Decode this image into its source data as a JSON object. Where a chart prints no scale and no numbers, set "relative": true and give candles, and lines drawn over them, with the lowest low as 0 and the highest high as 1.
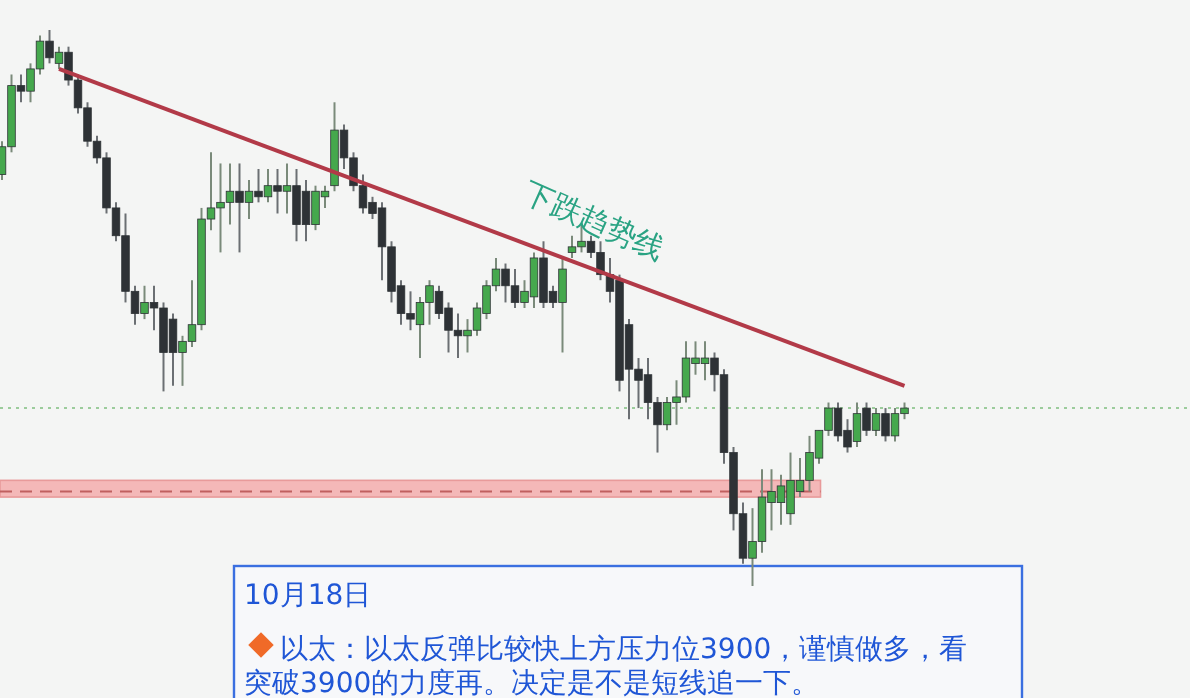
{
  "chart_data": {
    "type": "candlestick",
    "relative": true,
    "categories": [
      null,
      null,
      null,
      null,
      null,
      null,
      null,
      null,
      null,
      null,
      null,
      null,
      null,
      null,
      null,
      null,
      null,
      null,
      null,
      null,
      null,
      null,
      null,
      null,
      null,
      null,
      null,
      null,
      null,
      null,
      null,
      null,
      null,
      null,
      null,
      null,
      null,
      null,
      null,
      null,
      null,
      null,
      null,
      null,
      null,
      null,
      null,
      null,
      null,
      null,
      null,
      null,
      null,
      null,
      null,
      null,
      null,
      null,
      null,
      null,
      null,
      null,
      null,
      null,
      null,
      null,
      null,
      null,
      null,
      null,
      null,
      null,
      null,
      null,
      null,
      null,
      null,
      null,
      null,
      null,
      null,
      null,
      null,
      null,
      null,
      null,
      null,
      null,
      null,
      null,
      null,
      null,
      null,
      null,
      null,
      null
    ],
    "ohlc": [
      [
        0.74,
        0.8,
        0.73,
        0.79
      ],
      [
        0.79,
        0.92,
        0.78,
        0.9
      ],
      [
        0.9,
        0.92,
        0.87,
        0.89
      ],
      [
        0.89,
        0.94,
        0.87,
        0.93
      ],
      [
        0.93,
        0.99,
        0.92,
        0.98
      ],
      [
        0.98,
        1.0,
        0.94,
        0.95
      ],
      [
        0.94,
        0.97,
        0.93,
        0.96
      ],
      [
        0.96,
        0.97,
        0.9,
        0.91
      ],
      [
        0.91,
        0.92,
        0.85,
        0.86
      ],
      [
        0.86,
        0.87,
        0.79,
        0.8
      ],
      [
        0.8,
        0.81,
        0.76,
        0.77
      ],
      [
        0.77,
        0.78,
        0.67,
        0.68
      ],
      [
        0.68,
        0.69,
        0.62,
        0.63
      ],
      [
        0.63,
        0.67,
        0.51,
        0.53
      ],
      [
        0.53,
        0.54,
        0.47,
        0.49
      ],
      [
        0.49,
        0.54,
        0.48,
        0.51
      ],
      [
        0.51,
        0.54,
        0.46,
        0.5
      ],
      [
        0.5,
        0.51,
        0.35,
        0.42
      ],
      [
        0.48,
        0.49,
        0.36,
        0.42
      ],
      [
        0.42,
        0.45,
        0.36,
        0.44
      ],
      [
        0.44,
        0.55,
        0.43,
        0.47
      ],
      [
        0.47,
        0.68,
        0.46,
        0.66
      ],
      [
        0.66,
        0.78,
        0.64,
        0.68
      ],
      [
        0.68,
        0.76,
        0.6,
        0.69
      ],
      [
        0.69,
        0.76,
        0.65,
        0.71
      ],
      [
        0.71,
        0.76,
        0.6,
        0.69
      ],
      [
        0.69,
        0.73,
        0.66,
        0.71
      ],
      [
        0.71,
        0.75,
        0.69,
        0.7
      ],
      [
        0.7,
        0.75,
        0.69,
        0.72
      ],
      [
        0.72,
        0.75,
        0.67,
        0.71
      ],
      [
        0.71,
        0.76,
        0.67,
        0.72
      ],
      [
        0.72,
        0.75,
        0.62,
        0.65
      ],
      [
        0.71,
        0.73,
        0.62,
        0.65
      ],
      [
        0.65,
        0.72,
        0.64,
        0.71
      ],
      [
        0.7,
        0.72,
        0.68,
        0.71
      ],
      [
        0.72,
        0.87,
        0.71,
        0.82
      ],
      [
        0.82,
        0.83,
        0.75,
        0.77
      ],
      [
        0.77,
        0.78,
        0.71,
        0.72
      ],
      [
        0.72,
        0.74,
        0.67,
        0.68
      ],
      [
        0.69,
        0.7,
        0.66,
        0.67
      ],
      [
        0.68,
        0.69,
        0.55,
        0.61
      ],
      [
        0.61,
        0.62,
        0.51,
        0.53
      ],
      [
        0.54,
        0.55,
        0.47,
        0.49
      ],
      [
        0.49,
        0.53,
        0.46,
        0.48
      ],
      [
        0.47,
        0.52,
        0.41,
        0.51
      ],
      [
        0.51,
        0.55,
        0.47,
        0.54
      ],
      [
        0.53,
        0.54,
        0.48,
        0.49
      ],
      [
        0.5,
        0.51,
        0.42,
        0.46
      ],
      [
        0.46,
        0.49,
        0.41,
        0.45
      ],
      [
        0.45,
        0.48,
        0.42,
        0.46
      ],
      [
        0.46,
        0.51,
        0.45,
        0.5
      ],
      [
        0.49,
        0.55,
        0.48,
        0.54
      ],
      [
        0.54,
        0.59,
        0.53,
        0.57
      ],
      [
        0.57,
        0.58,
        0.51,
        0.54
      ],
      [
        0.54,
        0.57,
        0.5,
        0.51
      ],
      [
        0.51,
        0.55,
        0.5,
        0.53
      ],
      [
        0.52,
        0.6,
        0.5,
        0.59
      ],
      [
        0.59,
        0.62,
        0.5,
        0.51
      ],
      [
        0.53,
        0.54,
        0.5,
        0.51
      ],
      [
        0.51,
        0.59,
        0.42,
        0.57
      ],
      [
        0.6,
        0.63,
        0.59,
        0.61
      ],
      [
        0.61,
        0.65,
        0.6,
        0.62
      ],
      [
        0.62,
        0.63,
        0.59,
        0.6
      ],
      [
        0.6,
        0.62,
        0.55,
        0.56
      ],
      [
        0.56,
        0.59,
        0.51,
        0.53
      ],
      [
        0.55,
        0.56,
        0.35,
        0.37
      ],
      [
        0.47,
        0.48,
        0.3,
        0.39
      ],
      [
        0.39,
        0.41,
        0.32,
        0.37
      ],
      [
        0.38,
        0.41,
        0.3,
        0.33
      ],
      [
        0.33,
        0.34,
        0.24,
        0.29
      ],
      [
        0.29,
        0.34,
        0.28,
        0.33
      ],
      [
        0.33,
        0.37,
        0.29,
        0.34
      ],
      [
        0.34,
        0.44,
        0.33,
        0.41
      ],
      [
        0.4,
        0.44,
        0.38,
        0.41
      ],
      [
        0.4,
        0.44,
        0.37,
        0.41
      ],
      [
        0.41,
        0.42,
        0.35,
        0.38
      ],
      [
        0.38,
        0.39,
        0.22,
        0.24
      ],
      [
        0.24,
        0.25,
        0.1,
        0.13
      ],
      [
        0.13,
        0.15,
        0.04,
        0.05
      ],
      [
        0.05,
        0.14,
        0.0,
        0.08
      ],
      [
        0.08,
        0.21,
        0.06,
        0.16
      ],
      [
        0.15,
        0.21,
        0.1,
        0.17
      ],
      [
        0.15,
        0.2,
        0.11,
        0.18
      ],
      [
        0.13,
        0.24,
        0.11,
        0.19
      ],
      [
        0.17,
        0.23,
        0.16,
        0.19
      ],
      [
        0.19,
        0.27,
        0.17,
        0.24
      ],
      [
        0.23,
        0.28,
        0.22,
        0.28
      ],
      [
        0.28,
        0.33,
        0.27,
        0.32
      ],
      [
        0.32,
        0.33,
        0.26,
        0.27
      ],
      [
        0.28,
        0.3,
        0.24,
        0.25
      ],
      [
        0.26,
        0.33,
        0.25,
        0.31
      ],
      [
        0.32,
        0.33,
        0.27,
        0.28
      ],
      [
        0.28,
        0.32,
        0.27,
        0.31
      ],
      [
        0.31,
        0.32,
        0.26,
        0.27
      ],
      [
        0.27,
        0.32,
        0.26,
        0.31
      ],
      [
        0.31,
        0.33,
        0.3,
        0.32
      ]
    ],
    "series": [
      {
        "type": "line",
        "values": [
          null,
          null,
          null,
          null,
          null,
          null,
          0.93,
          null,
          null,
          null,
          null,
          null,
          null,
          null,
          null,
          null,
          null,
          null,
          null,
          null,
          null,
          null,
          null,
          null,
          null,
          null,
          null,
          null,
          null,
          null,
          null,
          null,
          null,
          null,
          null,
          null,
          null,
          null,
          null,
          null,
          null,
          null,
          null,
          null,
          null,
          null,
          null,
          null,
          null,
          null,
          null,
          null,
          null,
          null,
          null,
          null,
          null,
          null,
          null,
          null,
          null,
          null,
          null,
          null,
          null,
          null,
          null,
          null,
          null,
          null,
          null,
          null,
          null,
          null,
          null,
          null,
          null,
          null,
          null,
          null,
          null,
          null,
          null,
          null,
          null,
          null,
          null,
          null,
          null,
          null,
          null,
          null,
          null,
          null,
          null,
          0.36
        ],
        "color": "#b23a48"
      }
    ],
    "ref_lines": [
      {
        "axis": "y",
        "value": 0.32,
        "color": "#9ccc9c",
        "line_style": "dotted"
      },
      {
        "axis": "y",
        "value": 0.17,
        "color": "#c06060",
        "line_style": "dashed"
      }
    ],
    "bands": [
      {
        "axis": "y",
        "from": 0.16,
        "to": 0.19,
        "color": "#f4b8b8"
      }
    ],
    "annotations": [
      {
        "text": "下跌趋势线",
        "y": 0.64
      },
      "10月18日",
      "以太：以太反弹比较快上方压力位3900，谨慎做多，看突破3900的力度再。决定是不是短线追一下。"
    ]
  }
}
